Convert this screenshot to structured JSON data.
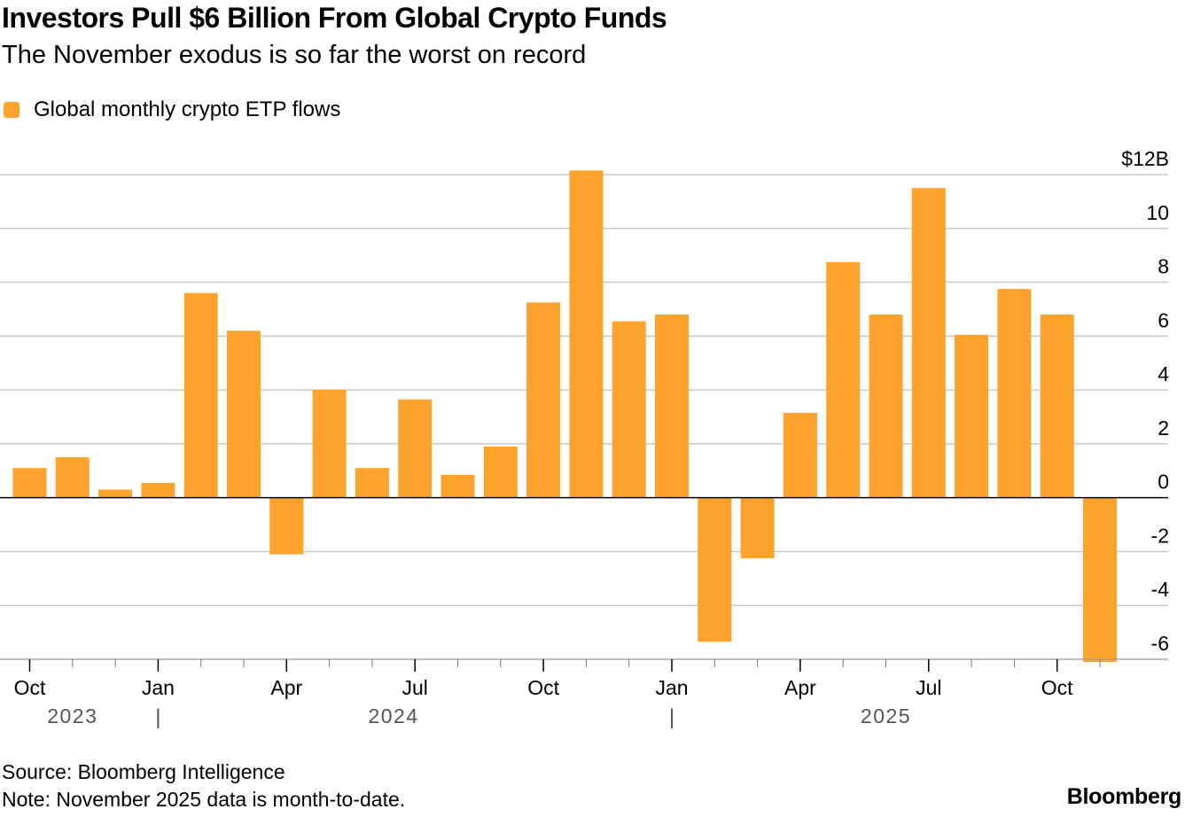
{
  "title": "Investors Pull $6 Billion From Global Crypto Funds",
  "subtitle": "The November exodus is so far the worst on record",
  "legend": {
    "label": "Global monthly crypto ETP flows"
  },
  "colors": {
    "bar": "#FBA32C",
    "grid": "#C8C8C8",
    "zero": "#000000",
    "year": "#555555"
  },
  "source": "Source: Bloomberg Intelligence",
  "note": "Note: November 2025 data is month-to-date.",
  "brand": "Bloomberg",
  "chart_data": {
    "type": "bar",
    "title": "Investors Pull $6 Billion From Global Crypto Funds",
    "ylabel": "",
    "xlabel": "",
    "ylim": [
      -6,
      12
    ],
    "y_ticks": [
      12,
      10,
      8,
      6,
      4,
      2,
      0,
      -2,
      -4,
      -6
    ],
    "y_tick_labels": [
      "$12B",
      "10",
      "8",
      "6",
      "4",
      "2",
      "0",
      "-2",
      "-4",
      "-6"
    ],
    "categories": [
      "Oct 2023",
      "Nov 2023",
      "Dec 2023",
      "Jan 2024",
      "Feb 2024",
      "Mar 2024",
      "Apr 2024",
      "May 2024",
      "Jun 2024",
      "Jul 2024",
      "Aug 2024",
      "Sep 2024",
      "Oct 2024",
      "Nov 2024",
      "Dec 2024",
      "Jan 2025",
      "Feb 2025",
      "Mar 2025",
      "Apr 2025",
      "May 2025",
      "Jun 2025",
      "Jul 2025",
      "Aug 2025",
      "Sep 2025",
      "Oct 2025",
      "Nov 2025"
    ],
    "series": [
      {
        "name": "Global monthly crypto ETP flows",
        "values": [
          1.1,
          1.5,
          0.3,
          0.55,
          7.6,
          6.2,
          -2.1,
          4.0,
          1.1,
          3.65,
          0.85,
          1.9,
          7.25,
          12.15,
          6.55,
          6.8,
          -5.35,
          -2.25,
          3.15,
          8.75,
          6.8,
          11.5,
          6.05,
          7.75,
          6.8,
          -6.1
        ]
      }
    ],
    "x_tick_labels": [
      {
        "index": 0,
        "label": "Oct"
      },
      {
        "index": 3,
        "label": "Jan"
      },
      {
        "index": 6,
        "label": "Apr"
      },
      {
        "index": 9,
        "label": "Jul"
      },
      {
        "index": 12,
        "label": "Oct"
      },
      {
        "index": 15,
        "label": "Jan"
      },
      {
        "index": 18,
        "label": "Apr"
      },
      {
        "index": 21,
        "label": "Jul"
      },
      {
        "index": 24,
        "label": "Oct"
      }
    ],
    "year_labels": [
      {
        "label": "2023",
        "from": 0,
        "to": 2
      },
      {
        "label": "2024",
        "from": 3,
        "to": 14
      },
      {
        "label": "2025",
        "from": 15,
        "to": 25
      }
    ],
    "year_dividers": [
      3,
      15
    ],
    "year_divider_text": "|",
    "grid": true,
    "legend_position": "top-left"
  }
}
